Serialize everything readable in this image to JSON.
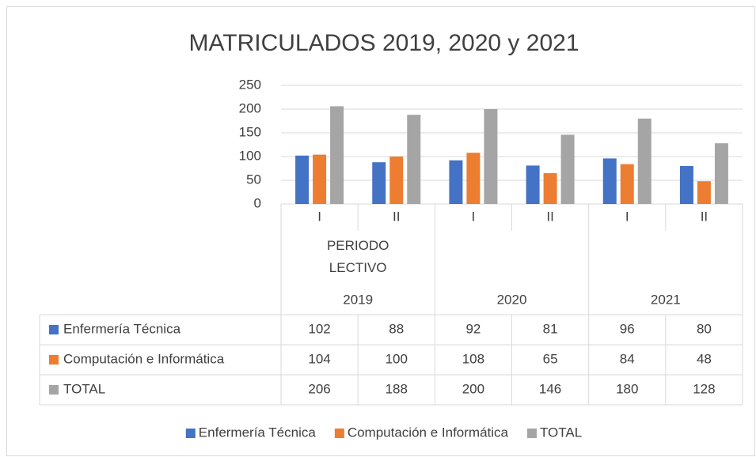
{
  "chart_data": {
    "type": "bar",
    "title": "MATRICULADOS 2019, 2020 y 2021",
    "x_label": "PERIODO LECTIVO",
    "groups": [
      {
        "label": "2019",
        "categories": [
          "I",
          "II"
        ]
      },
      {
        "label": "2020",
        "categories": [
          "I",
          "II"
        ]
      },
      {
        "label": "2021",
        "categories": [
          "I",
          "II"
        ]
      }
    ],
    "series": [
      {
        "name": "Enfermería Técnica",
        "color": "#4472c4",
        "values": [
          102,
          88,
          92,
          81,
          96,
          80
        ]
      },
      {
        "name": "Computación e Informática",
        "color": "#ed7d31",
        "values": [
          104,
          100,
          108,
          65,
          84,
          48
        ]
      },
      {
        "name": "TOTAL",
        "color": "#a5a5a5",
        "values": [
          206,
          188,
          200,
          146,
          180,
          128
        ]
      }
    ],
    "ylim": [
      0,
      250
    ],
    "yticks": [
      0,
      50,
      100,
      150,
      200,
      250
    ],
    "grid": true,
    "legend": "bottom"
  }
}
